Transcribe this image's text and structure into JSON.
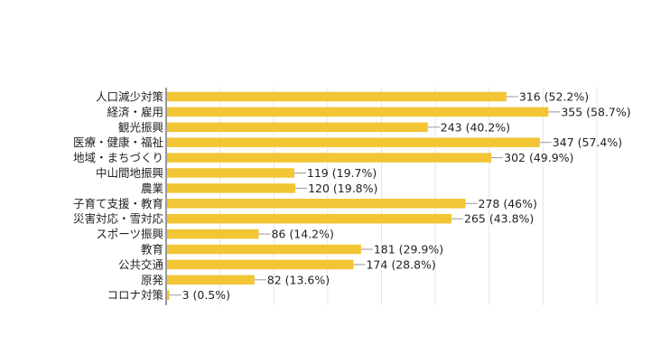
{
  "colors": {
    "bar": "#f2c535",
    "grid": "#e6e6e6",
    "axis": "#333333",
    "leader": "#999999",
    "text": "#222222"
  },
  "chart_data": {
    "type": "bar",
    "orientation": "horizontal",
    "title": "",
    "xlabel": "",
    "ylabel": "",
    "grid": true,
    "xlim": [
      0,
      400
    ],
    "categories": [
      "人口減少対策",
      "経済・雇用",
      "観光振興",
      "医療・健康・福祉",
      "地域・まちづくり",
      "中山間地振興",
      "農業",
      "子育て支援・教育",
      "災害対応・雪対応",
      "スポーツ振興",
      "教育",
      "公共交通",
      "原発",
      "コロナ対策"
    ],
    "values": [
      316,
      355,
      243,
      347,
      302,
      119,
      120,
      278,
      265,
      86,
      181,
      174,
      82,
      3
    ],
    "data_labels": [
      "316 (52.2%)",
      "355 (58.7%)",
      "243 (40.2%)",
      "347 (57.4%)",
      "302 (49.9%)",
      "119 (19.7%)",
      "120 (19.8%)",
      "278 (46%)",
      "265 (43.8%)",
      "86 (14.2%)",
      "181 (29.9%)",
      "174 (28.8%)",
      "82 (13.6%)",
      "3 (0.5%)"
    ]
  }
}
